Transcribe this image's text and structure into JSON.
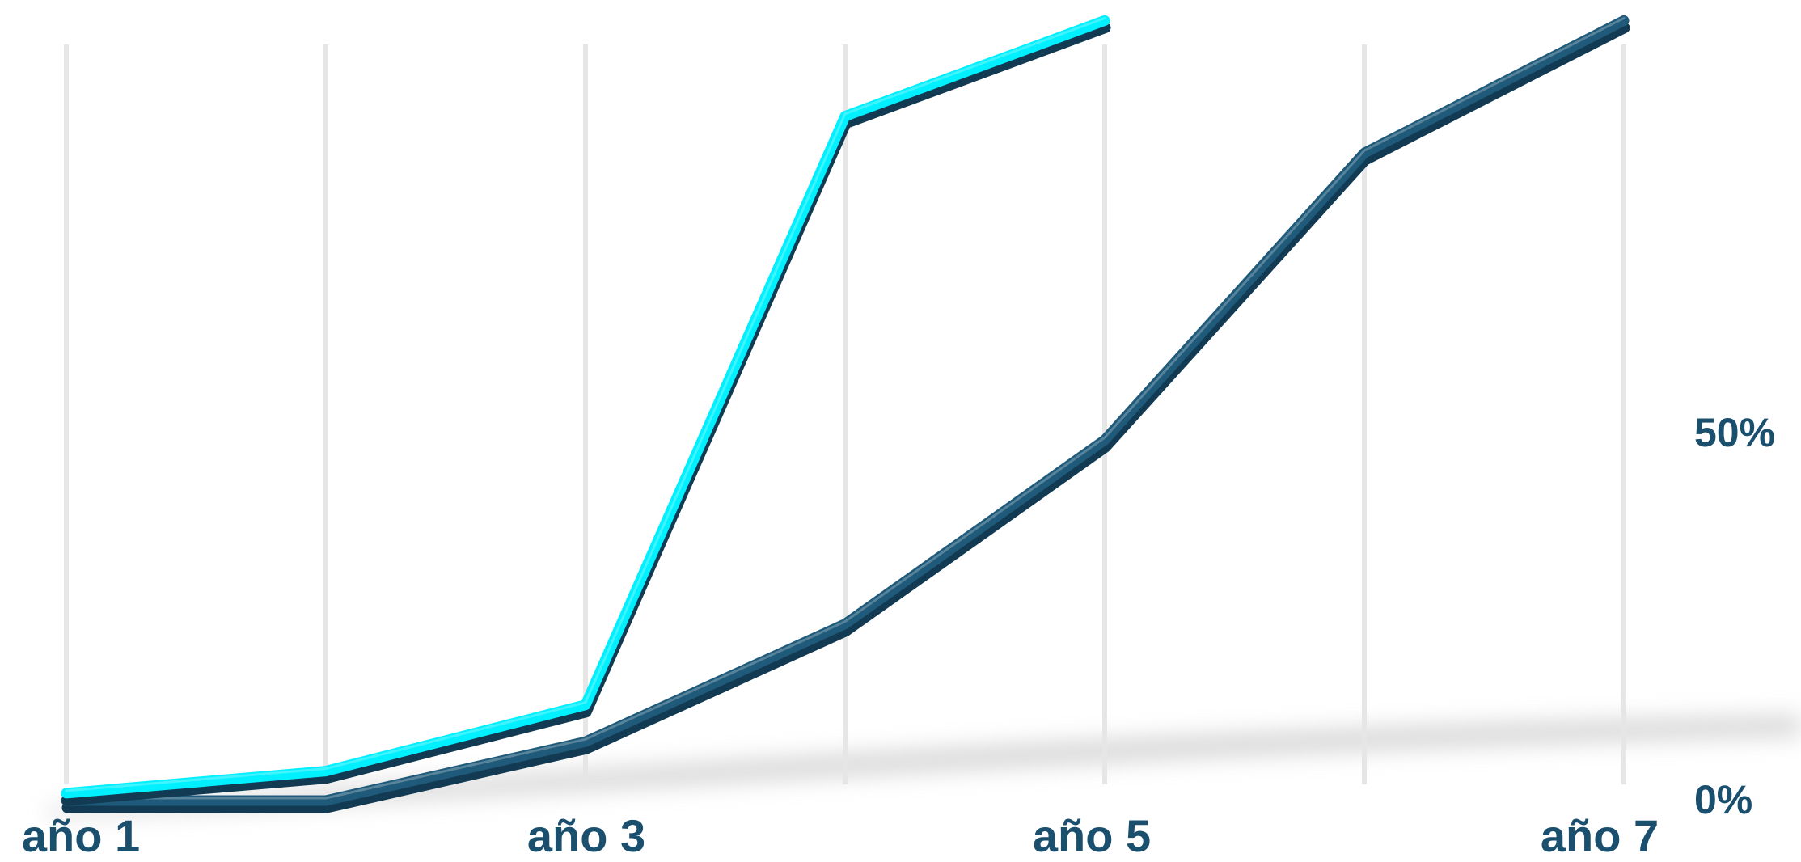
{
  "chart_data": {
    "type": "line",
    "title": "",
    "xlabel": "",
    "ylabel": "",
    "categories": [
      "año 1",
      "",
      "año 3",
      "",
      "año 5",
      "",
      "año 7"
    ],
    "x_tick_labels": [
      "año 1",
      "año 3",
      "año 5",
      "año 7"
    ],
    "y_tick_labels": [
      "0%",
      "50%"
    ],
    "ylim": [
      0,
      100
    ],
    "y_axis_position": "right",
    "grid": "vertical",
    "legend": "none",
    "series": [
      {
        "values": [
          1,
          4,
          13,
          93,
          106,
          null,
          null
        ],
        "color": "#00f0ff"
      },
      {
        "values": [
          0,
          0,
          8,
          24,
          49,
          88,
          106
        ],
        "color": "#1f5a7a"
      }
    ]
  },
  "colors": {
    "label": "#1b4f6e",
    "grid": "#e6e6e6",
    "shadow": "#b4b4b4"
  }
}
